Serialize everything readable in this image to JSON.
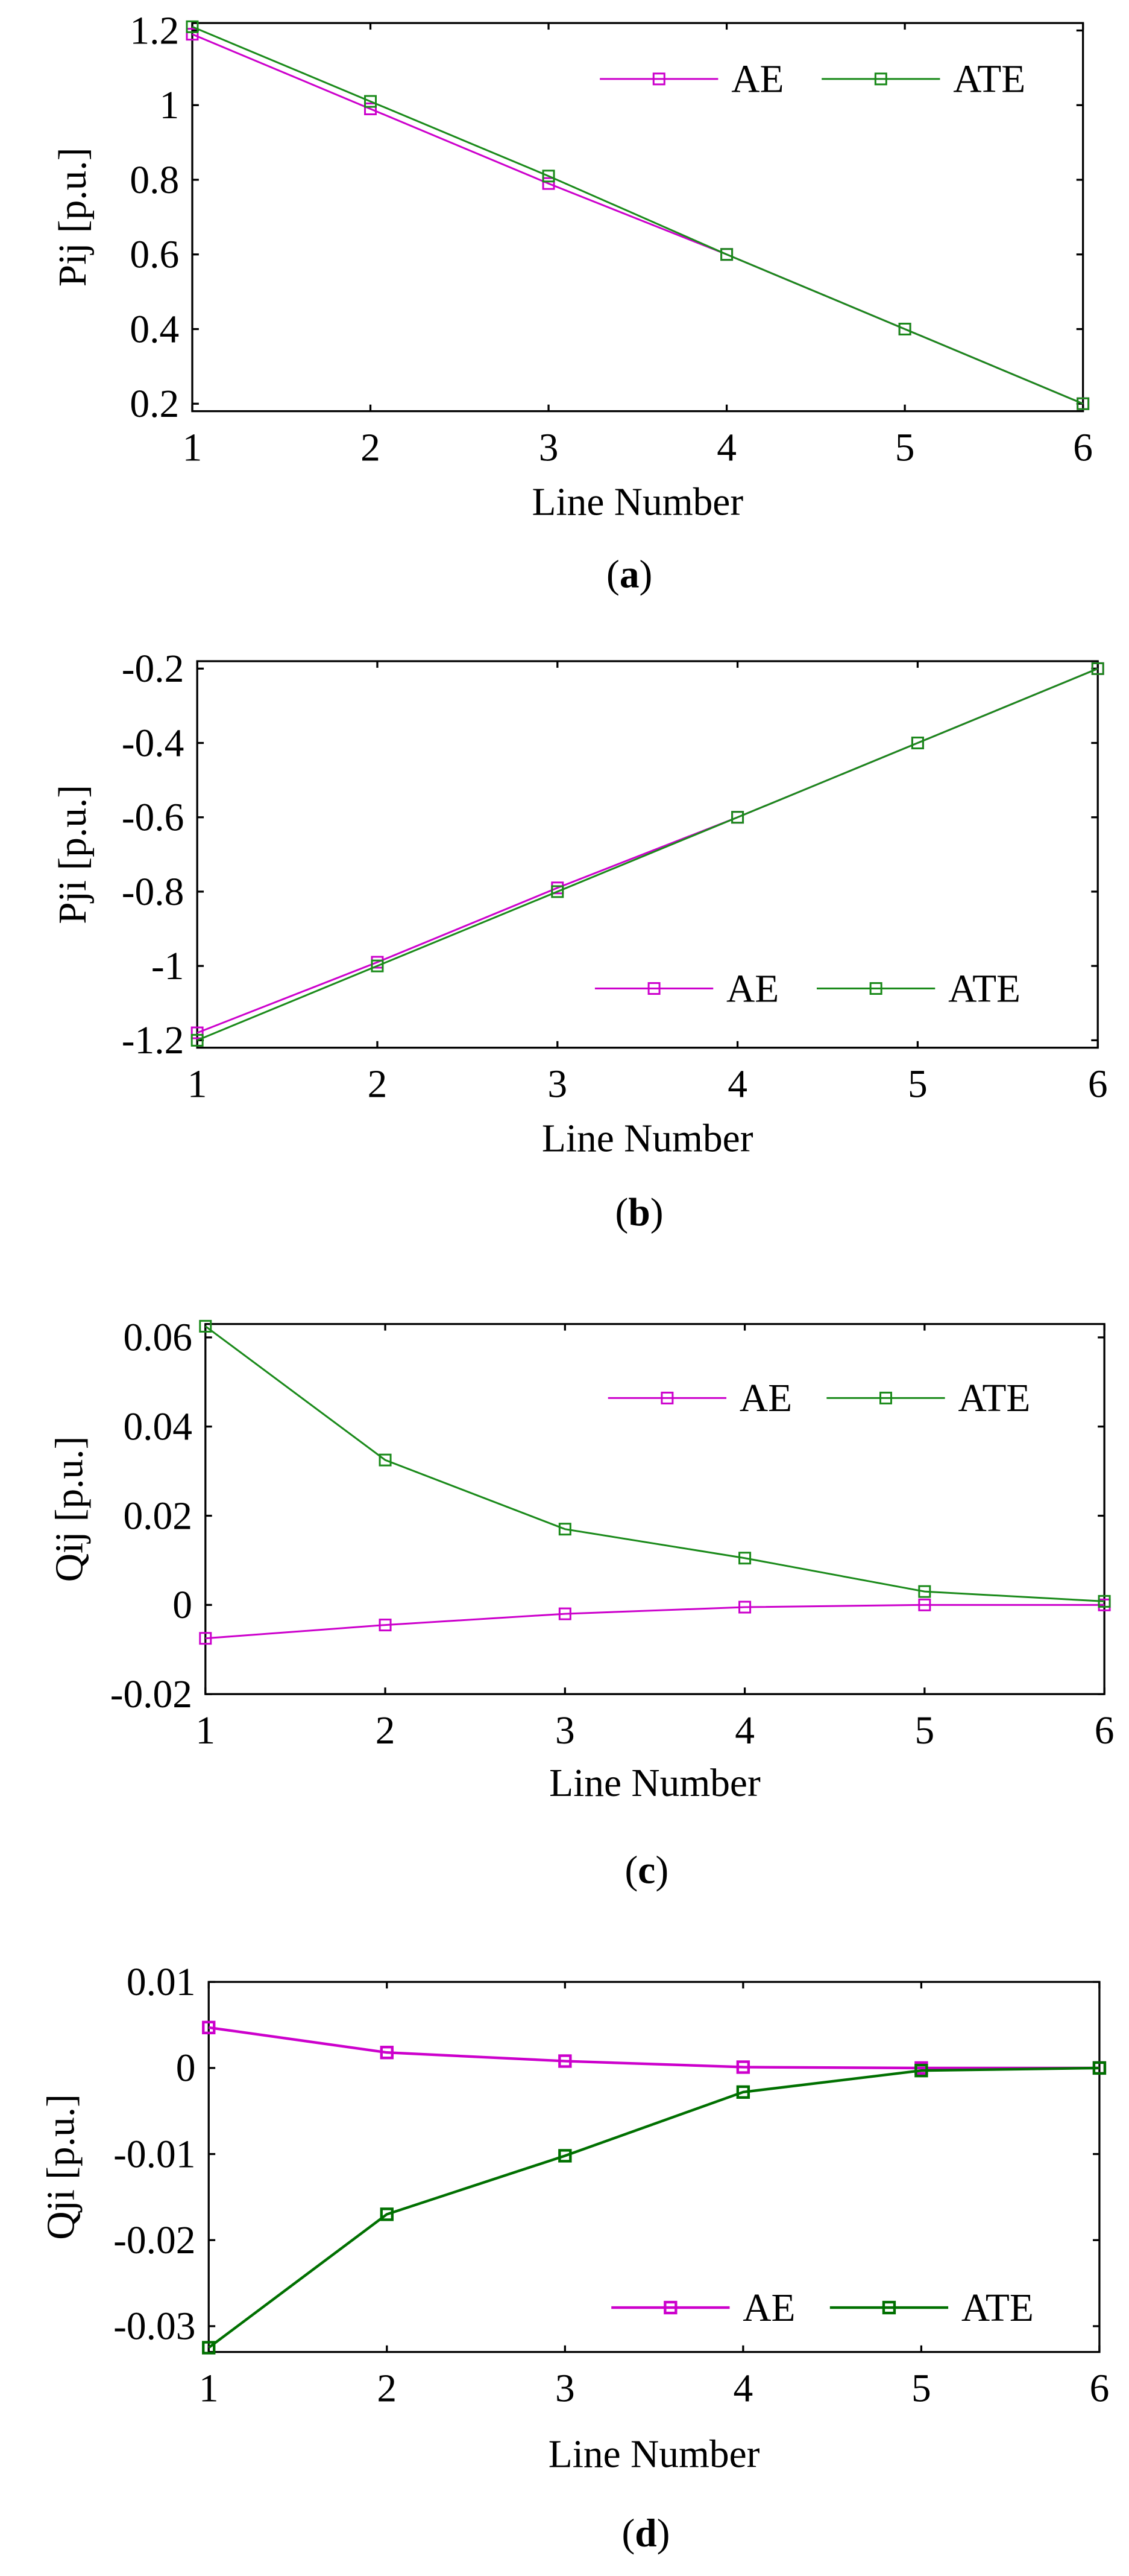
{
  "colors": {
    "ae": "#cc00cc",
    "ate": "#1a8a1a",
    "ate_dark": "#007000",
    "axis": "#000000"
  },
  "chart_data": [
    {
      "type": "line",
      "caption_open": "(",
      "caption_letter": "a",
      "caption_close": ")",
      "xlabel": "Line Number",
      "ylabel": "Pij [p.u.]",
      "x": [
        1,
        2,
        3,
        4,
        5,
        6
      ],
      "xlim": [
        1,
        6
      ],
      "ylim": [
        0.18,
        1.22
      ],
      "xticks": [
        1,
        2,
        3,
        4,
        5,
        6
      ],
      "yticks": [
        0.2,
        0.4,
        0.6,
        0.8,
        1,
        1.2
      ],
      "ytick_labels": [
        "0.2",
        "0.4",
        "0.6",
        "0.8",
        "1",
        "1.2"
      ],
      "legend": "top-right",
      "series": [
        {
          "name": "AE",
          "values": [
            1.19,
            0.99,
            0.79,
            0.6,
            0.4,
            0.2
          ]
        },
        {
          "name": "ATE",
          "values": [
            1.21,
            1.01,
            0.81,
            0.6,
            0.4,
            0.2
          ]
        }
      ]
    },
    {
      "type": "line",
      "caption_open": "(",
      "caption_letter": "b",
      "caption_close": ")",
      "xlabel": "Line Number",
      "ylabel": "Pji [p.u.]",
      "x": [
        1,
        2,
        3,
        4,
        5,
        6
      ],
      "xlim": [
        1,
        6
      ],
      "ylim": [
        -1.22,
        -0.18
      ],
      "xticks": [
        1,
        2,
        3,
        4,
        5,
        6
      ],
      "yticks": [
        -1.2,
        -1,
        -0.8,
        -0.6,
        -0.4,
        -0.2
      ],
      "ytick_labels": [
        "-1.2",
        "-1",
        "-0.8",
        "-0.6",
        "-0.4",
        "-0.2"
      ],
      "legend": "bottom-right",
      "series": [
        {
          "name": "AE",
          "values": [
            -1.18,
            -0.99,
            -0.79,
            -0.6,
            -0.4,
            -0.2
          ]
        },
        {
          "name": "ATE",
          "values": [
            -1.2,
            -1.0,
            -0.8,
            -0.6,
            -0.4,
            -0.2
          ]
        }
      ]
    },
    {
      "type": "line",
      "caption_open": "(",
      "caption_letter": "c",
      "caption_close": ")",
      "xlabel": "Line Number",
      "ylabel": "Qij [p.u.]",
      "x": [
        1,
        2,
        3,
        4,
        5,
        6
      ],
      "xlim": [
        1,
        6
      ],
      "ylim": [
        -0.02,
        0.063
      ],
      "xticks": [
        1,
        2,
        3,
        4,
        5,
        6
      ],
      "yticks": [
        -0.02,
        0,
        0.02,
        0.04,
        0.06
      ],
      "ytick_labels": [
        "-0.02",
        "0",
        "0.02",
        "0.04",
        "0.06"
      ],
      "legend": "top-right",
      "series": [
        {
          "name": "AE",
          "values": [
            -0.0075,
            -0.0045,
            -0.002,
            -0.0005,
            0.0,
            0.0
          ]
        },
        {
          "name": "ATE",
          "values": [
            0.0625,
            0.0325,
            0.017,
            0.0105,
            0.003,
            0.0008
          ]
        }
      ]
    },
    {
      "type": "line",
      "caption_open": "(",
      "caption_letter": "d",
      "caption_close": ")",
      "xlabel": "Line Number",
      "ylabel": "Qji [p.u.]",
      "x": [
        1,
        2,
        3,
        4,
        5,
        6
      ],
      "xlim": [
        1,
        6
      ],
      "ylim": [
        -0.033,
        0.01
      ],
      "xticks": [
        1,
        2,
        3,
        4,
        5,
        6
      ],
      "yticks": [
        -0.03,
        -0.02,
        -0.01,
        0,
        0.01
      ],
      "ytick_labels": [
        "-0.03",
        "-0.02",
        "-0.01",
        "0",
        "0.01"
      ],
      "legend": "bottom-right",
      "series": [
        {
          "name": "AE",
          "values": [
            0.0047,
            0.0018,
            0.0008,
            0.0001,
            0.0,
            0.0
          ]
        },
        {
          "name": "ATE",
          "values": [
            -0.0325,
            -0.017,
            -0.0102,
            -0.0028,
            -0.0003,
            0.0
          ]
        }
      ]
    }
  ]
}
